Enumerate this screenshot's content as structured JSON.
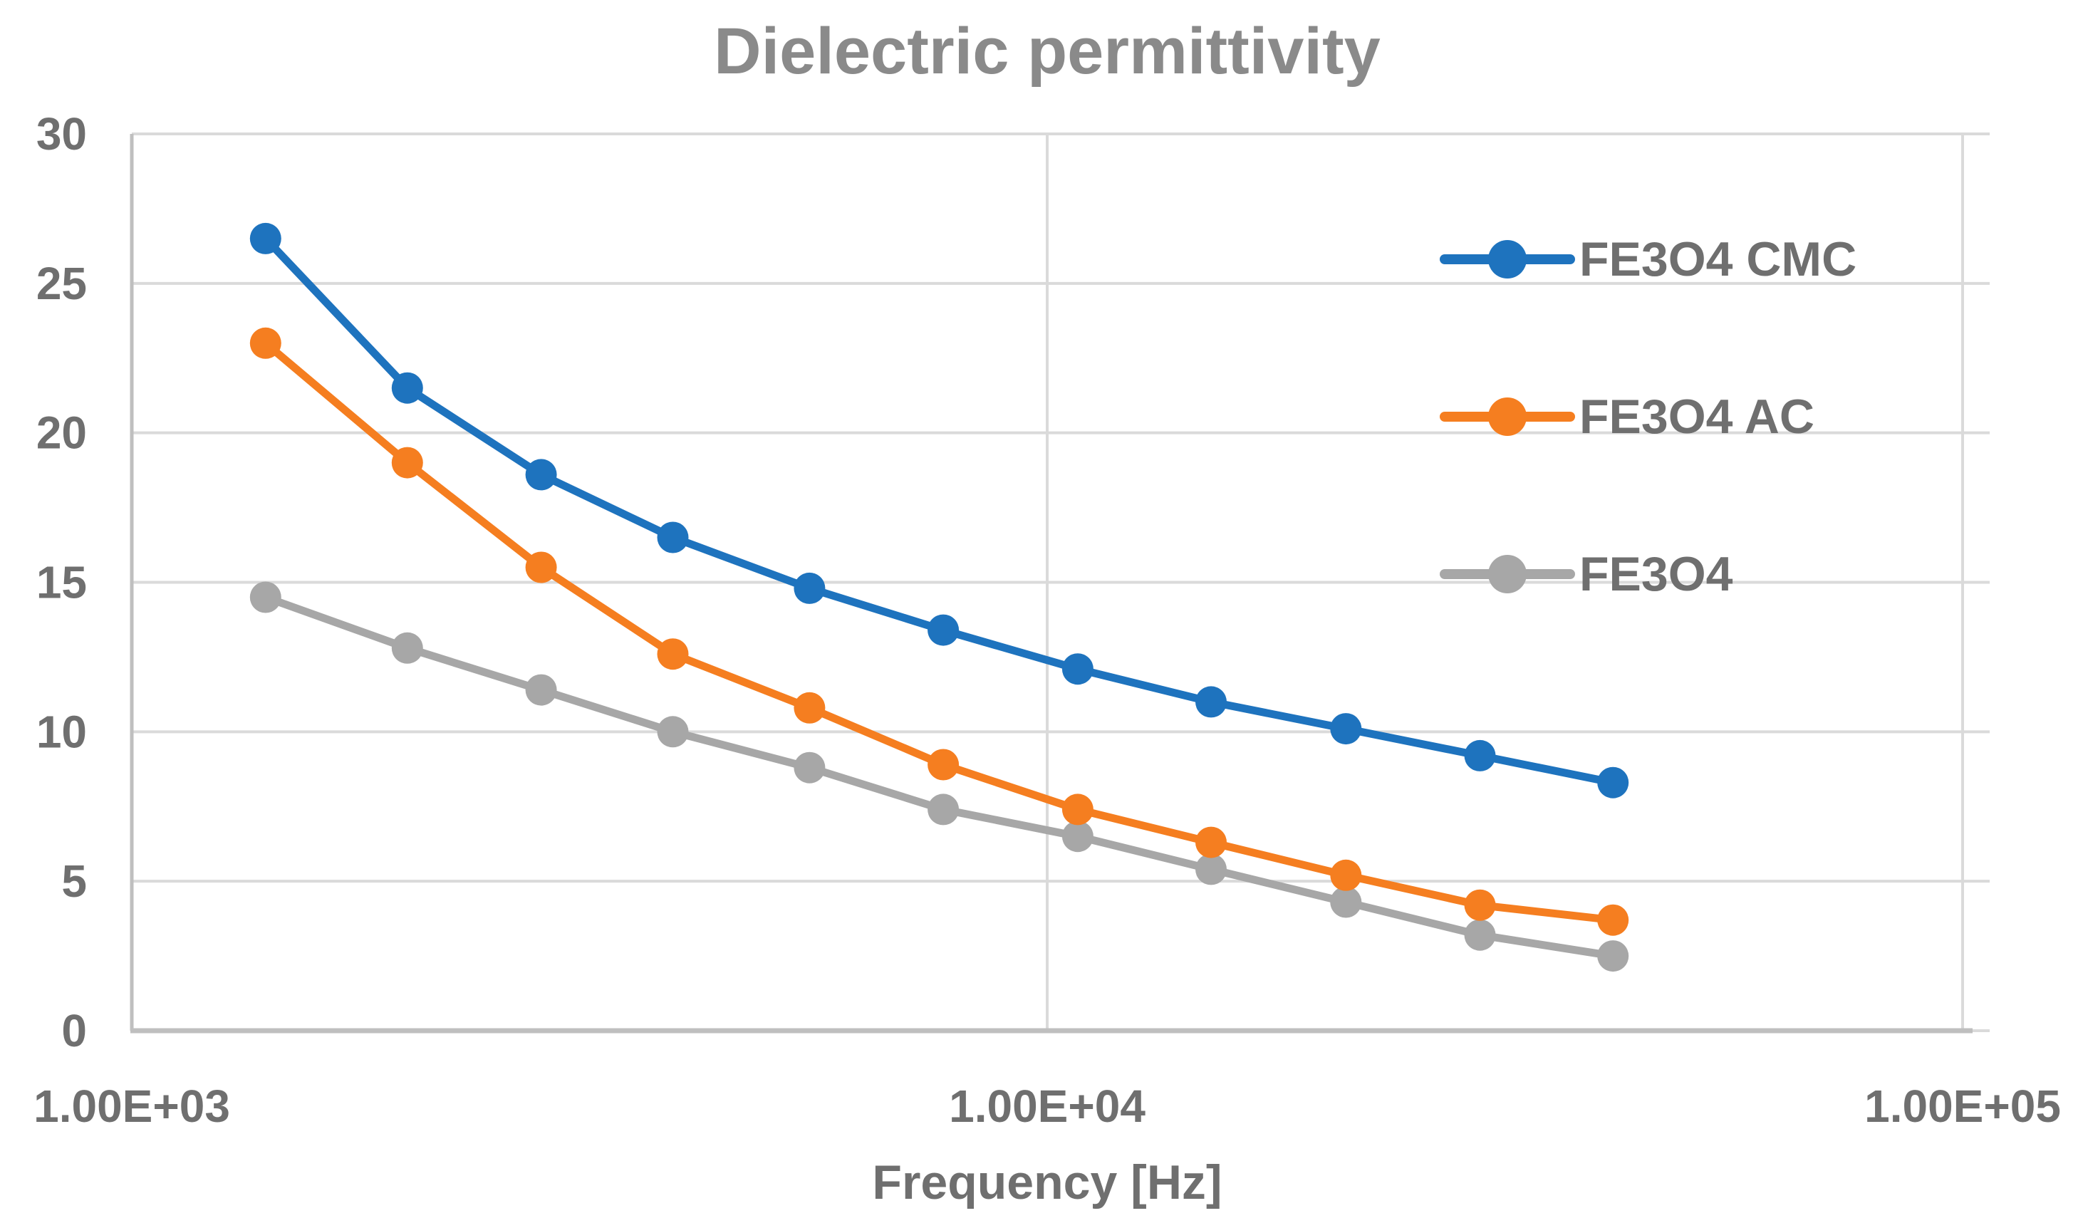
{
  "chart_data": {
    "type": "line",
    "title": "Dielectric permittivity",
    "xlabel": "Frequency [Hz]",
    "ylabel": "",
    "x_scale": "log",
    "xlim": [
      1000,
      100000
    ],
    "ylim": [
      0,
      30
    ],
    "y_ticks": [
      0,
      5,
      10,
      15,
      20,
      25,
      30
    ],
    "x_ticks": [
      {
        "value": 1000,
        "label": "1.00E+03"
      },
      {
        "value": 10000,
        "label": "1.00E+04"
      },
      {
        "value": 100000,
        "label": "1.00E+05"
      }
    ],
    "grid": true,
    "legend_position": "inside-right",
    "x": [
      1400,
      2000,
      2800,
      3900,
      5500,
      7700,
      10800,
      15100,
      21200,
      29700,
      41500
    ],
    "series": [
      {
        "name": "FE3O4 CMC",
        "color": "#1E73BE",
        "values": [
          26.5,
          21.5,
          18.6,
          16.5,
          14.8,
          13.4,
          12.1,
          11.0,
          10.1,
          9.2,
          8.3
        ]
      },
      {
        "name": "FE3O4 AC",
        "color": "#F57E20",
        "values": [
          23.0,
          19.0,
          15.5,
          12.6,
          10.8,
          8.9,
          7.4,
          6.3,
          5.2,
          4.2,
          3.7
        ]
      },
      {
        "name": "FE3O4",
        "color": "#A7A7A7",
        "values": [
          14.5,
          12.8,
          11.4,
          10.0,
          8.8,
          7.4,
          6.5,
          5.4,
          4.3,
          3.2,
          2.5
        ]
      }
    ],
    "colors": {
      "gridline": "#DADADA",
      "axis_line": "#BFBFBF",
      "title_text": "#8A8A8A",
      "label_text": "#6F6F6F",
      "background": "#FFFFFF"
    }
  }
}
